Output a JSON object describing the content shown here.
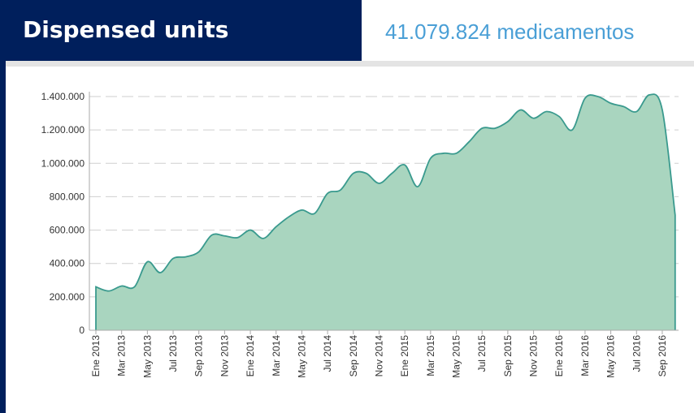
{
  "header": {
    "title": "Dispensed units",
    "total": "41.079.824 medicamentos"
  },
  "chart_data": {
    "type": "area",
    "categories": [
      "Ene 2013",
      null,
      "Mar 2013",
      null,
      "May 2013",
      null,
      "Jul 2013",
      null,
      "Sep 2013",
      null,
      "Nov 2013",
      null,
      "Ene 2014",
      null,
      "Mar 2014",
      null,
      "May 2014",
      null,
      "Jul 2014",
      null,
      "Sep 2014",
      null,
      "Nov 2014",
      null,
      "Ene 2015",
      null,
      "Mar 2015",
      null,
      "May 2015",
      null,
      "Jul 2015",
      null,
      "Sep 2015",
      null,
      "Nov 2015",
      null,
      "Ene 2016",
      null,
      "Mar 2016",
      null,
      "May 2016",
      null,
      "Jul 2016",
      null,
      "Sep 2016",
      null
    ],
    "series": [
      {
        "name": "Dispensed units",
        "color": "#3a9a8e",
        "fill": "#a9d5bf",
        "values": [
          260000,
          235000,
          265000,
          260000,
          410000,
          345000,
          430000,
          440000,
          470000,
          570000,
          565000,
          555000,
          600000,
          550000,
          620000,
          680000,
          720000,
          700000,
          820000,
          840000,
          940000,
          940000,
          880000,
          940000,
          990000,
          860000,
          1030000,
          1060000,
          1060000,
          1130000,
          1210000,
          1210000,
          1250000,
          1320000,
          1270000,
          1310000,
          1280000,
          1200000,
          1390000,
          1400000,
          1360000,
          1340000,
          1310000,
          1410000,
          1320000,
          690000
        ]
      }
    ],
    "ylim": [
      0,
      1400000
    ],
    "yticks": [
      0,
      {
        "value": 200000,
        "label": "200.000"
      },
      {
        "value": 400000,
        "label": "400.000"
      },
      {
        "value": 600000,
        "label": "600.000"
      },
      {
        "value": 800000,
        "label": "800.000"
      },
      {
        "value": 1000000,
        "label": "1.000.000"
      },
      {
        "value": 1200000,
        "label": "1.200.000"
      },
      {
        "value": 1400000,
        "label": "1.400.000"
      }
    ],
    "grid": true
  }
}
